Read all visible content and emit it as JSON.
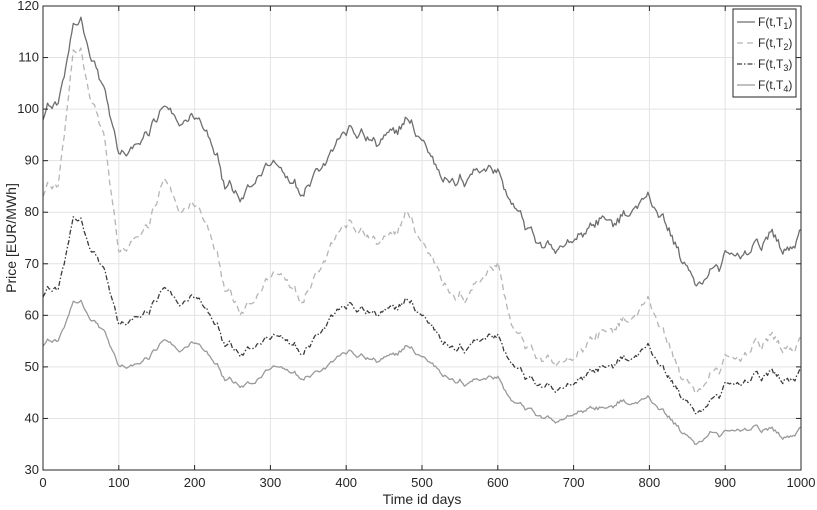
{
  "chart_data": {
    "type": "line",
    "title": "",
    "xlabel": "Time id days",
    "ylabel": "Price [EUR/MWh]",
    "xlim": [
      0,
      1000
    ],
    "ylim": [
      30,
      120
    ],
    "x_ticks": [
      "0",
      "100",
      "200",
      "300",
      "400",
      "500",
      "600",
      "700",
      "800",
      "900",
      "1000"
    ],
    "y_ticks": [
      "30",
      "40",
      "50",
      "60",
      "70",
      "80",
      "90",
      "100",
      "110",
      "120"
    ],
    "grid": true,
    "legend_position": "top-right",
    "x": [
      0,
      20,
      40,
      50,
      60,
      80,
      100,
      120,
      140,
      160,
      180,
      200,
      220,
      240,
      260,
      280,
      300,
      320,
      340,
      360,
      380,
      400,
      420,
      440,
      460,
      480,
      500,
      520,
      540,
      560,
      580,
      600,
      620,
      640,
      660,
      680,
      700,
      720,
      740,
      760,
      780,
      800,
      820,
      840,
      860,
      880,
      900,
      920,
      940,
      960,
      980,
      1000
    ],
    "series": [
      {
        "name": "F(t,T1)",
        "label_main": "F(t,T",
        "label_sub": "1",
        "label_end": ")",
        "color": "#6e6e6e",
        "dash": "",
        "values": [
          100,
          101,
          115,
          118,
          112,
          104,
          91,
          92,
          96,
          100,
          97,
          99,
          94,
          86,
          82,
          86,
          90,
          88,
          84,
          88,
          92,
          96,
          95,
          93,
          95,
          98,
          94,
          89,
          85,
          87,
          89,
          88,
          81,
          77,
          73,
          72,
          75,
          77,
          79,
          78,
          81,
          83,
          78,
          72,
          66,
          68,
          71,
          72,
          73,
          76,
          72,
          76
        ]
      },
      {
        "name": "F(t,T2)",
        "label_main": "F(t,T",
        "label_sub": "2",
        "label_end": ")",
        "color": "#b5b5b5",
        "dash": "6,4",
        "values": [
          85,
          85,
          110,
          112,
          104,
          95,
          72,
          74,
          78,
          86,
          80,
          82,
          76,
          66,
          60,
          63,
          68,
          68,
          63,
          68,
          74,
          78,
          76,
          74,
          75,
          80,
          74,
          70,
          63,
          64,
          68,
          70,
          57,
          54,
          51,
          50,
          52,
          55,
          57,
          58,
          60,
          63,
          56,
          49,
          45,
          48,
          51,
          52,
          54,
          56,
          53,
          55
        ]
      },
      {
        "name": "F(t,T3)",
        "label_main": "F(t,T",
        "label_sub": "3",
        "label_end": ")",
        "color": "#3c3c3c",
        "dash": "5,2,1.5,2",
        "values": [
          65,
          65,
          78,
          79,
          74,
          69,
          58,
          59,
          61,
          65,
          62,
          64,
          60,
          55,
          52,
          54,
          56,
          56,
          53,
          56,
          60,
          62,
          61,
          60,
          61,
          63,
          60,
          57,
          53,
          54,
          56,
          56,
          50,
          48,
          46,
          45,
          47,
          49,
          50,
          51,
          52,
          54,
          49,
          45,
          41,
          43,
          46,
          47,
          48,
          49,
          47,
          49
        ]
      },
      {
        "name": "F(t,T4)",
        "label_main": "F(t,T",
        "label_sub": "4",
        "label_end": ")",
        "color": "#9a9a9a",
        "dash": "",
        "values": [
          55,
          55,
          62,
          63,
          60,
          57,
          50,
          50,
          52,
          55,
          53,
          55,
          52,
          48,
          46,
          47,
          50,
          50,
          48,
          49,
          51,
          53,
          52,
          51,
          52,
          54,
          52,
          50,
          47,
          47,
          48,
          48,
          43,
          42,
          40,
          39,
          41,
          42,
          42,
          43,
          43,
          44,
          41,
          38,
          35,
          37,
          37,
          38,
          38,
          38,
          36,
          38
        ]
      }
    ]
  }
}
